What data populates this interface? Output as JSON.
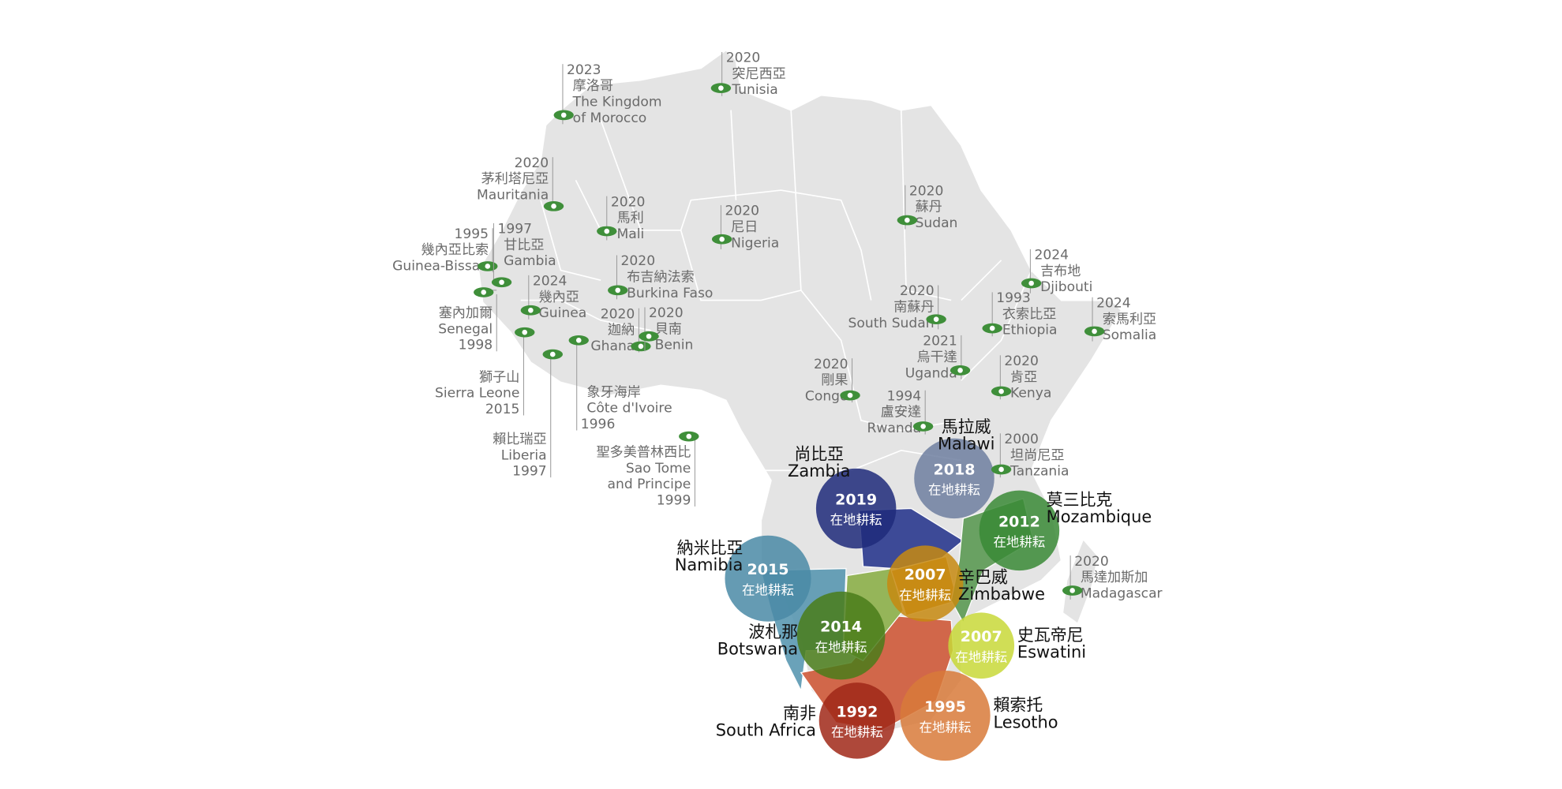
{
  "focus_label": "在地耕耘",
  "focus_countries": [
    {
      "year": 2018,
      "zh": "馬拉威",
      "en": "Malawi"
    },
    {
      "year": 2019,
      "zh": "尚比亞",
      "en": "Zambia"
    },
    {
      "year": 2012,
      "zh": "莫三比克",
      "en": "Mozambique"
    },
    {
      "year": 2015,
      "zh": "納米比亞",
      "en": "Namibia"
    },
    {
      "year": 2007,
      "zh": "辛巴威",
      "en": "Zimbabwe"
    },
    {
      "year": 2014,
      "zh": "波札那",
      "en": "Botswana"
    },
    {
      "year": 2007,
      "zh": "史瓦帝尼",
      "en": "Eswatini"
    },
    {
      "year": 1992,
      "zh": "南非",
      "en": "South Africa"
    },
    {
      "year": 1995,
      "zh": "賴索托",
      "en": "Lesotho"
    }
  ],
  "countries": [
    {
      "year": 2023,
      "zh": "摩洛哥",
      "en": [
        "The Kingdom",
        "of Morocco"
      ]
    },
    {
      "year": 2020,
      "zh": "突尼西亞",
      "en": [
        "Tunisia"
      ]
    },
    {
      "year": 2020,
      "zh": "茅利塔尼亞",
      "en": [
        "Mauritania"
      ]
    },
    {
      "year": 2020,
      "zh": "馬利",
      "en": [
        "Mali"
      ]
    },
    {
      "year": 2020,
      "zh": "尼日",
      "en": [
        "Nigeria"
      ]
    },
    {
      "year": 2020,
      "zh": "蘇丹",
      "en": [
        "Sudan"
      ]
    },
    {
      "year": 1995,
      "zh": "幾內亞比索",
      "en": [
        "Guinea-Bissau"
      ]
    },
    {
      "year": 1997,
      "zh": "甘比亞",
      "en": [
        "Gambia"
      ]
    },
    {
      "year": 1998,
      "zh": "塞內加爾",
      "en": [
        "Senegal"
      ]
    },
    {
      "year": 2024,
      "zh": "幾內亞",
      "en": [
        "Guinea"
      ]
    },
    {
      "year": 2020,
      "zh": "布吉納法索",
      "en": [
        "Burkina Faso"
      ]
    },
    {
      "year": 2020,
      "zh": "迦納",
      "en": [
        "Ghana"
      ]
    },
    {
      "year": 2020,
      "zh": "貝南",
      "en": [
        "Benin"
      ]
    },
    {
      "year": 2015,
      "zh": "獅子山",
      "en": [
        "Sierra Leone"
      ]
    },
    {
      "year": 1997,
      "zh": "賴比瑞亞",
      "en": [
        "Liberia"
      ]
    },
    {
      "year": 1996,
      "zh": "象牙海岸",
      "en": [
        "Côte d'Ivoire"
      ]
    },
    {
      "year": 1999,
      "zh": "聖多美普林西比",
      "en": [
        "Sao Tome",
        "and Principe"
      ]
    },
    {
      "year": 2024,
      "zh": "吉布地",
      "en": [
        "Djibouti"
      ]
    },
    {
      "year": 1993,
      "zh": "衣索比亞",
      "en": [
        "Ethiopia"
      ]
    },
    {
      "year": 2024,
      "zh": "索馬利亞",
      "en": [
        "Somalia"
      ]
    },
    {
      "year": 2020,
      "zh": "南蘇丹",
      "en": [
        "South Sudan"
      ]
    },
    {
      "year": 2021,
      "zh": "烏干達",
      "en": [
        "Uganda"
      ]
    },
    {
      "year": 2020,
      "zh": "肯亞",
      "en": [
        "Kenya"
      ]
    },
    {
      "year": 2020,
      "zh": "剛果",
      "en": [
        "Congo"
      ]
    },
    {
      "year": 1994,
      "zh": "盧安達",
      "en": [
        "Rwanda"
      ]
    },
    {
      "year": 2000,
      "zh": "坦尚尼亞",
      "en": [
        "Tanzania"
      ]
    },
    {
      "year": 2020,
      "zh": "馬達加斯加",
      "en": [
        "Madagascar"
      ]
    }
  ]
}
